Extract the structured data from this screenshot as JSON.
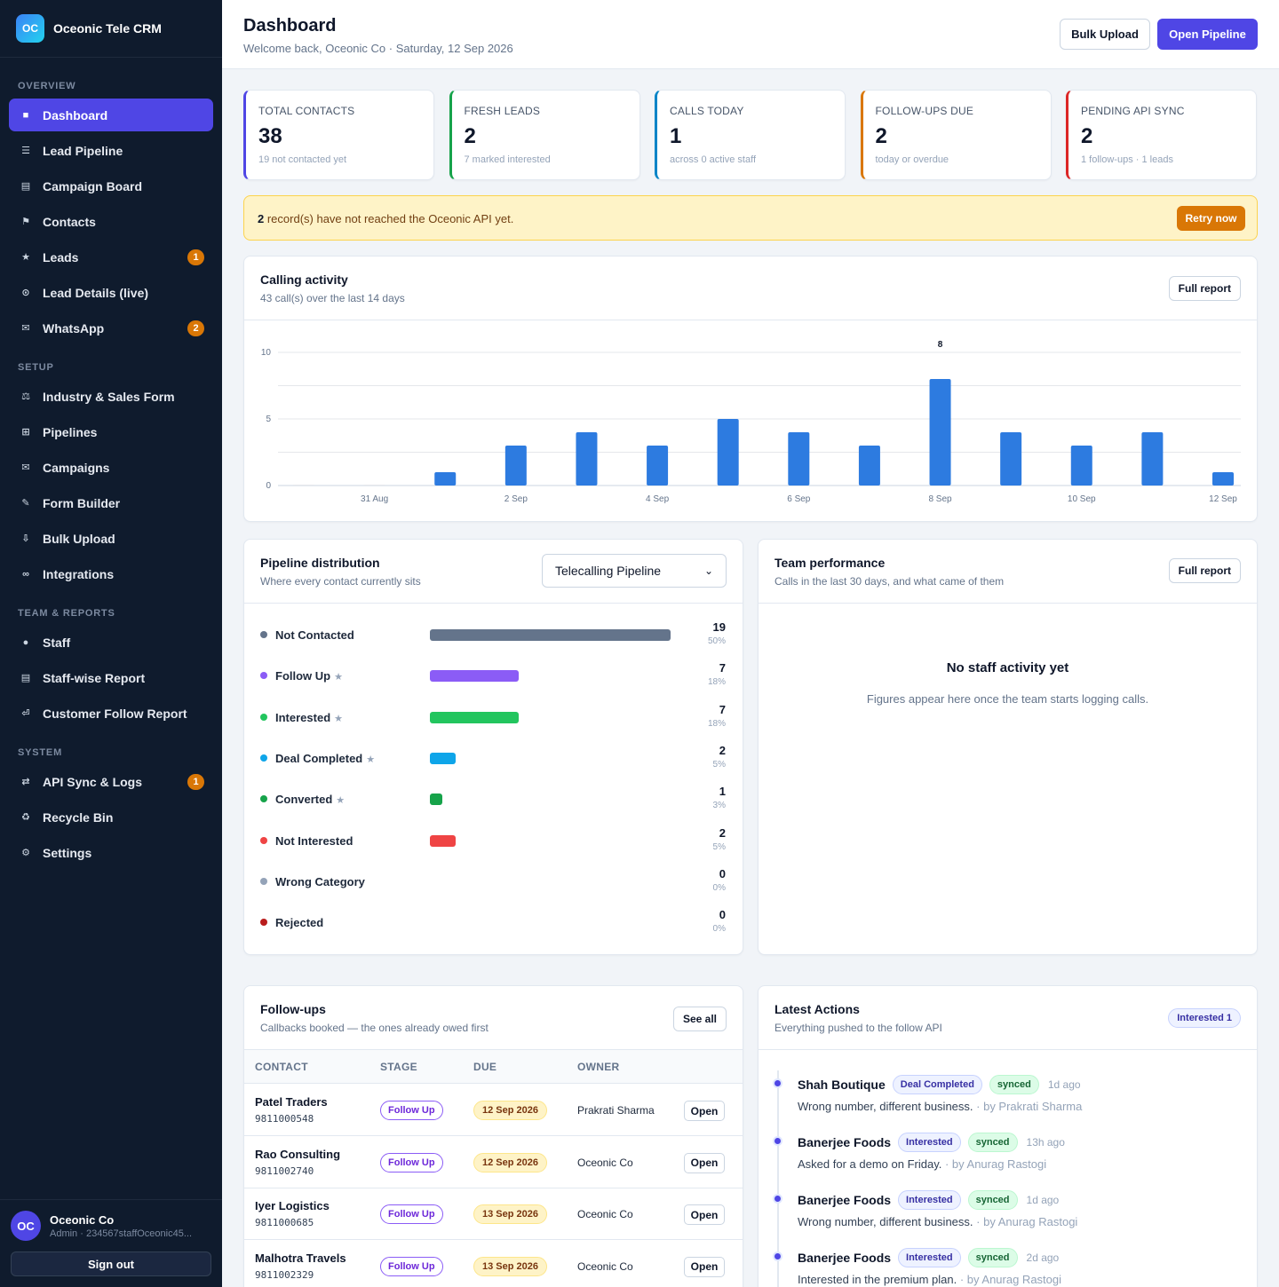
{
  "brand": {
    "logo": "OC",
    "name": "Oceonic Tele CRM"
  },
  "nav": {
    "sections": [
      {
        "title": "OVERVIEW",
        "items": [
          {
            "icon": "■",
            "icon_name": "dashboard-icon",
            "label": "Dashboard",
            "active": true
          },
          {
            "icon": "☰",
            "icon_name": "pipeline-icon",
            "label": "Lead Pipeline"
          },
          {
            "icon": "▤",
            "icon_name": "board-icon",
            "label": "Campaign Board"
          },
          {
            "icon": "⚑",
            "icon_name": "contacts-icon",
            "label": "Contacts"
          },
          {
            "icon": "★",
            "icon_name": "star-icon",
            "label": "Leads",
            "badge": "1"
          },
          {
            "icon": "⊙",
            "icon_name": "live-icon",
            "label": "Lead Details (live)"
          },
          {
            "icon": "✉",
            "icon_name": "whatsapp-icon",
            "label": "WhatsApp",
            "badge": "2"
          }
        ]
      },
      {
        "title": "SETUP",
        "items": [
          {
            "icon": "⚖",
            "icon_name": "industry-icon",
            "label": "Industry & Sales Form"
          },
          {
            "icon": "⊞",
            "icon_name": "pipelines-icon",
            "label": "Pipelines"
          },
          {
            "icon": "✉",
            "icon_name": "campaigns-icon",
            "label": "Campaigns"
          },
          {
            "icon": "✎",
            "icon_name": "form-builder-icon",
            "label": "Form Builder"
          },
          {
            "icon": "⇩",
            "icon_name": "upload-icon",
            "label": "Bulk Upload"
          },
          {
            "icon": "∞",
            "icon_name": "integrations-icon",
            "label": "Integrations"
          }
        ]
      },
      {
        "title": "TEAM & REPORTS",
        "items": [
          {
            "icon": "●",
            "icon_name": "staff-icon",
            "label": "Staff"
          },
          {
            "icon": "▤",
            "icon_name": "report-icon",
            "label": "Staff-wise Report"
          },
          {
            "icon": "⏎",
            "icon_name": "follow-report-icon",
            "label": "Customer Follow Report"
          }
        ]
      },
      {
        "title": "SYSTEM",
        "items": [
          {
            "icon": "⇄",
            "icon_name": "sync-icon",
            "label": "API Sync & Logs",
            "badge": "1"
          },
          {
            "icon": "♻",
            "icon_name": "recycle-icon",
            "label": "Recycle Bin"
          },
          {
            "icon": "⚙",
            "icon_name": "gear-icon",
            "label": "Settings"
          }
        ]
      }
    ]
  },
  "user": {
    "initials": "OC",
    "name": "Oceonic Co",
    "role": "Admin · 234567staffOceonic45...",
    "signout": "Sign out"
  },
  "header": {
    "title": "Dashboard",
    "subtitle": "Welcome back, Oceonic Co · Saturday, 12 Sep 2026",
    "bulk_upload": "Bulk Upload",
    "open_pipeline": "Open Pipeline"
  },
  "stats": [
    {
      "label": "TOTAL CONTACTS",
      "value": "38",
      "sub": "19 not contacted yet",
      "color": "#4f46e5"
    },
    {
      "label": "FRESH LEADS",
      "value": "2",
      "sub": "7 marked interested",
      "color": "#16a34a"
    },
    {
      "label": "CALLS TODAY",
      "value": "1",
      "sub": "across 0 active staff",
      "color": "#0284c7"
    },
    {
      "label": "FOLLOW-UPS DUE",
      "value": "2",
      "sub": "today or overdue",
      "color": "#d97706"
    },
    {
      "label": "PENDING API SYNC",
      "value": "2",
      "sub": "1 follow-ups · 1 leads",
      "color": "#dc2626"
    }
  ],
  "alert": {
    "count": "2",
    "text": " record(s) have not reached the Oceonic API yet.",
    "button": "Retry now"
  },
  "calling": {
    "title": "Calling activity",
    "subtitle": "43 call(s) over the last 14 days",
    "button": "Full report"
  },
  "chart_data": {
    "type": "bar",
    "categories": [
      "30 Aug",
      "31 Aug",
      "1 Sep",
      "2 Sep",
      "3 Sep",
      "4 Sep",
      "5 Sep",
      "6 Sep",
      "7 Sep",
      "8 Sep",
      "9 Sep",
      "10 Sep",
      "11 Sep",
      "12 Sep"
    ],
    "tick_labels": [
      "31 Aug",
      "2 Sep",
      "4 Sep",
      "6 Sep",
      "8 Sep",
      "10 Sep",
      "12 Sep"
    ],
    "values": [
      0,
      0,
      1,
      3,
      4,
      3,
      5,
      4,
      3,
      8,
      4,
      3,
      4,
      1
    ],
    "peak_label": "8",
    "yticks": [
      0,
      5,
      10
    ],
    "ylim": [
      0,
      10
    ],
    "bar_color": "#2d7be0",
    "grid": true
  },
  "pipeline": {
    "title": "Pipeline distribution",
    "subtitle": "Where every contact currently sits",
    "select_value": "Telecalling Pipeline",
    "rows": [
      {
        "label": "Not Contacted",
        "star": "",
        "count": "19",
        "pct": "50%",
        "fraction": 0.5,
        "color": "#64748b"
      },
      {
        "label": "Follow Up",
        "star": "★",
        "count": "7",
        "pct": "18%",
        "fraction": 0.184,
        "color": "#8b5cf6"
      },
      {
        "label": "Interested",
        "star": "★",
        "count": "7",
        "pct": "18%",
        "fraction": 0.184,
        "color": "#22c55e"
      },
      {
        "label": "Deal Completed",
        "star": "★",
        "count": "2",
        "pct": "5%",
        "fraction": 0.053,
        "color": "#0ea5e9"
      },
      {
        "label": "Converted",
        "star": "★",
        "count": "1",
        "pct": "3%",
        "fraction": 0.026,
        "color": "#16a34a"
      },
      {
        "label": "Not Interested",
        "star": "",
        "count": "2",
        "pct": "5%",
        "fraction": 0.053,
        "color": "#ef4444"
      },
      {
        "label": "Wrong Category",
        "star": "",
        "count": "0",
        "pct": "0%",
        "fraction": 0,
        "color": "#94a3b8"
      },
      {
        "label": "Rejected",
        "star": "",
        "count": "0",
        "pct": "0%",
        "fraction": 0,
        "color": "#b91c1c"
      }
    ]
  },
  "team": {
    "title": "Team performance",
    "subtitle": "Calls in the last 30 days, and what came of them",
    "button": "Full report",
    "empty_title": "No staff activity yet",
    "empty_sub": "Figures appear here once the team starts logging calls."
  },
  "followups": {
    "title": "Follow-ups",
    "subtitle": "Callbacks booked — the ones already owed first",
    "button": "See all",
    "columns": [
      "CONTACT",
      "STAGE",
      "DUE",
      "OWNER"
    ],
    "rows": [
      {
        "name": "Patel Traders",
        "phone": "9811000548",
        "stage": "Follow Up",
        "due": "12 Sep 2026",
        "owner": "Prakrati Sharma",
        "action": "Open"
      },
      {
        "name": "Rao Consulting",
        "phone": "9811002740",
        "stage": "Follow Up",
        "due": "12 Sep 2026",
        "owner": "Oceonic Co",
        "action": "Open"
      },
      {
        "name": "Iyer Logistics",
        "phone": "9811000685",
        "stage": "Follow Up",
        "due": "13 Sep 2026",
        "owner": "Oceonic Co",
        "action": "Open"
      },
      {
        "name": "Malhotra Travels",
        "phone": "9811002329",
        "stage": "Follow Up",
        "due": "13 Sep 2026",
        "owner": "Oceonic Co",
        "action": "Open"
      }
    ]
  },
  "actions": {
    "title": "Latest Actions",
    "subtitle": "Everything pushed to the follow API",
    "badge": "Interested 1",
    "items": [
      {
        "name": "Shah Boutique",
        "stage": "Deal Completed",
        "sync": "synced",
        "time": "1d ago",
        "note": "Wrong number, different business.",
        "by": " · by Prakrati Sharma"
      },
      {
        "name": "Banerjee Foods",
        "stage": "Interested",
        "sync": "synced",
        "time": "13h ago",
        "note": "Asked for a demo on Friday.",
        "by": " · by Anurag Rastogi"
      },
      {
        "name": "Banerjee Foods",
        "stage": "Interested",
        "sync": "synced",
        "time": "1d ago",
        "note": "Wrong number, different business.",
        "by": " · by Anurag Rastogi"
      },
      {
        "name": "Banerjee Foods",
        "stage": "Interested",
        "sync": "synced",
        "time": "2d ago",
        "note": "Interested in the premium plan.",
        "by": " · by Anurag Rastogi"
      }
    ]
  }
}
